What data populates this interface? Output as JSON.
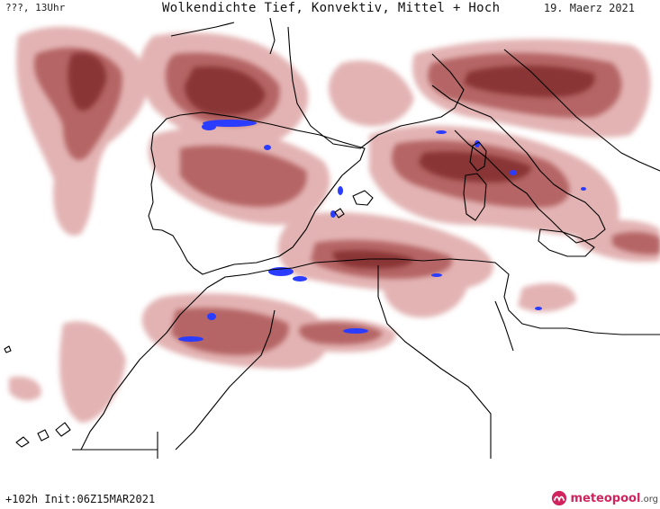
{
  "header": {
    "left_label": "???, 13Uhr",
    "title": "Wolkendichte  Tief, Konvektiv, Mittel + Hoch",
    "date": "19. Maerz 2021"
  },
  "footer": {
    "run_info": "+102h Init:06Z15MAR2021",
    "brand_name": "meteopool",
    "brand_tld": ".org"
  },
  "map": {
    "region": "Iberian Peninsula, Western Mediterranean, North Africa",
    "colors": {
      "background": "#ffffff",
      "cloud_light": "#e3b3b3",
      "cloud_mid": "#b56565",
      "cloud_dark": "#8a3434",
      "convective": "#2a3cff",
      "coastline": "#000000"
    }
  }
}
